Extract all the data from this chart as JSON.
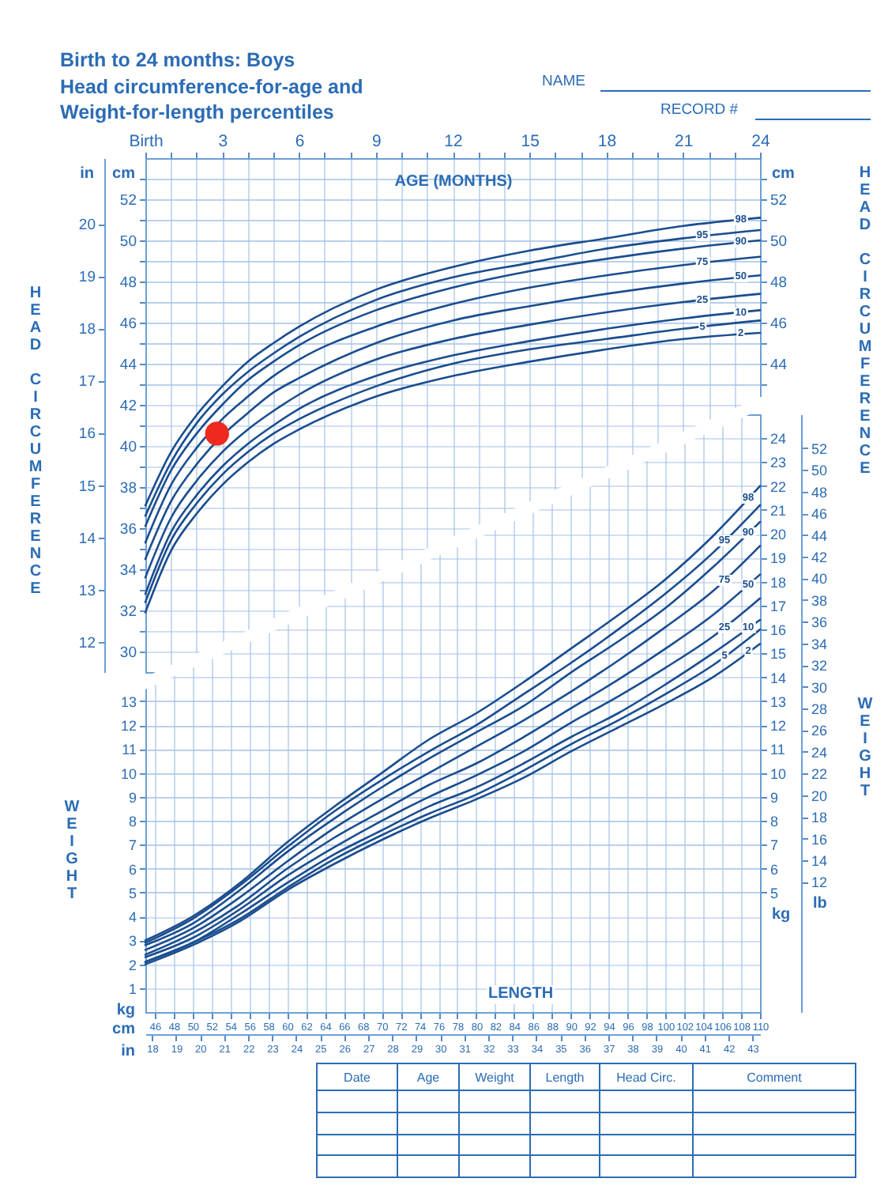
{
  "chart_data": [
    {
      "type": "line",
      "title": "Birth to 24 months: Boys",
      "subtitle": "Head circumference-for-age and Weight-for-length percentiles",
      "xlabel": "AGE (MONTHS)",
      "ylabel": "cm",
      "y2label": "cm",
      "y3label": "in",
      "x": [
        0,
        1,
        2,
        3,
        4,
        5,
        6,
        9,
        12,
        15,
        18,
        21,
        24
      ],
      "xlim": [
        0,
        24
      ],
      "xticks": [
        {
          "value": 0,
          "label": "Birth"
        },
        {
          "value": 1,
          "label": null
        },
        {
          "value": 2,
          "label": null
        },
        3,
        {
          "value": 4,
          "label": null
        },
        {
          "value": 5,
          "label": null
        },
        6,
        {
          "value": 7,
          "label": null
        },
        {
          "value": 8,
          "label": null
        },
        9,
        {
          "value": 10,
          "label": null
        },
        {
          "value": 11,
          "label": null
        },
        12,
        {
          "value": 13,
          "label": null
        },
        {
          "value": 14,
          "label": null
        },
        15,
        {
          "value": 16,
          "label": null
        },
        {
          "value": 17,
          "label": null
        },
        18,
        {
          "value": 19,
          "label": null
        },
        {
          "value": 20,
          "label": null
        },
        21,
        {
          "value": 22,
          "label": null
        },
        {
          "value": 23,
          "label": null
        },
        24
      ],
      "ylim": [
        29,
        54
      ],
      "yticks": [
        30,
        {
          "value": 31,
          "label": null
        },
        32,
        {
          "value": 33,
          "label": null
        },
        34,
        {
          "value": 35,
          "label": null
        },
        36,
        {
          "value": 37,
          "label": null
        },
        38,
        {
          "value": 39,
          "label": null
        },
        40,
        {
          "value": 41,
          "label": null
        },
        42,
        {
          "value": 43,
          "label": null
        },
        44,
        {
          "value": 45,
          "label": null
        },
        46,
        {
          "value": 47,
          "label": null
        },
        48,
        {
          "value": 49,
          "label": null
        },
        50,
        {
          "value": 51,
          "label": null
        },
        52,
        {
          "value": 53,
          "label": null
        }
      ],
      "y2lim": [
        29,
        54
      ],
      "y2ticks": [
        {
          "value": 43,
          "label": null
        },
        44,
        {
          "value": 45,
          "label": null
        },
        46,
        {
          "value": 47,
          "label": null
        },
        48,
        {
          "value": 49,
          "label": null
        },
        50,
        {
          "value": 51,
          "label": null
        },
        52,
        {
          "value": 53,
          "label": null
        }
      ],
      "y3lim": [
        11.42,
        21.26
      ],
      "y3ticks": [
        12,
        13,
        14,
        15,
        16,
        17,
        18,
        19,
        20
      ],
      "grid": true,
      "series": [
        {
          "name": "98",
          "color": "#1a4d8f",
          "values": [
            37.1,
            39.7,
            41.5,
            42.9,
            44.1,
            45.0,
            45.8,
            47.6,
            48.7,
            49.5,
            50.1,
            50.7,
            51.1
          ]
        },
        {
          "name": "95",
          "color": "#1a4d8f",
          "values": [
            36.6,
            39.2,
            41.1,
            42.5,
            43.6,
            44.5,
            45.3,
            47.1,
            48.2,
            48.9,
            49.6,
            50.1,
            50.5
          ]
        },
        {
          "name": "90",
          "color": "#1a4d8f",
          "values": [
            36.1,
            38.8,
            40.6,
            42.0,
            43.2,
            44.1,
            44.9,
            46.6,
            47.7,
            48.5,
            49.1,
            49.6,
            50.0
          ]
        },
        {
          "name": "75",
          "color": "#1a4d8f",
          "values": [
            35.3,
            38.1,
            39.9,
            41.3,
            42.4,
            43.4,
            44.2,
            45.8,
            46.9,
            47.7,
            48.3,
            48.8,
            49.2
          ]
        },
        {
          "name": "50",
          "color": "#1a4d8f",
          "values": [
            34.5,
            37.3,
            39.1,
            40.5,
            41.6,
            42.6,
            43.3,
            45.0,
            46.1,
            46.8,
            47.4,
            47.9,
            48.3
          ]
        },
        {
          "name": "25",
          "color": "#1a4d8f",
          "values": [
            33.6,
            36.5,
            38.3,
            39.7,
            40.8,
            41.7,
            42.5,
            44.2,
            45.2,
            45.9,
            46.5,
            47.0,
            47.4
          ]
        },
        {
          "name": "10",
          "color": "#1a4d8f",
          "values": [
            32.8,
            35.8,
            37.6,
            39.0,
            40.1,
            41.0,
            41.8,
            43.4,
            44.4,
            45.1,
            45.7,
            46.2,
            46.6
          ]
        },
        {
          "name": "5",
          "color": "#1a4d8f",
          "values": [
            32.4,
            35.4,
            37.2,
            38.6,
            39.7,
            40.6,
            41.3,
            42.9,
            44.0,
            44.7,
            45.2,
            45.7,
            46.1
          ]
        },
        {
          "name": "2",
          "color": "#1a4d8f",
          "values": [
            31.9,
            34.9,
            36.7,
            38.1,
            39.2,
            40.1,
            40.8,
            42.4,
            43.4,
            44.1,
            44.7,
            45.2,
            45.5
          ]
        },
        {
          "type": "scatter",
          "color": "#ee2a1f",
          "marker": "circle",
          "x": [
            2.8
          ],
          "values": [
            40.6
          ]
        }
      ],
      "annotations": [
        "NAME",
        "RECORD #",
        "HEAD CIRCUMFERENCE",
        "HEAD CIRCUMFERENCE"
      ]
    },
    {
      "type": "line",
      "xlabel": "cm",
      "x2label": "in",
      "ylabel": "kg",
      "y2label": "kg",
      "y3label": "lb",
      "x": [
        45,
        50,
        55,
        60,
        65,
        70,
        75,
        80,
        85,
        90,
        95,
        100,
        105,
        110
      ],
      "xlim": [
        45,
        110
      ],
      "xticks": [
        46,
        48,
        50,
        52,
        54,
        56,
        58,
        60,
        62,
        64,
        66,
        68,
        70,
        72,
        74,
        76,
        78,
        80,
        82,
        84,
        86,
        88,
        90,
        92,
        94,
        96,
        98,
        100,
        102,
        104,
        106,
        108,
        110
      ],
      "x2lim": [
        17.72,
        43.31
      ],
      "x2ticks": [
        18,
        19,
        20,
        21,
        22,
        23,
        24,
        25,
        26,
        27,
        28,
        29,
        30,
        31,
        32,
        33,
        34,
        35,
        36,
        37,
        38,
        39,
        40,
        41,
        42,
        43
      ],
      "ylim": [
        0,
        25
      ],
      "yticks": [
        1,
        2,
        3,
        4,
        5,
        6,
        7,
        8,
        9,
        10,
        11,
        12,
        13
      ],
      "y2lim": [
        0,
        25
      ],
      "y2ticks": [
        5,
        6,
        7,
        8,
        9,
        10,
        11,
        12,
        13,
        14,
        15,
        16,
        17,
        18,
        19,
        20,
        21,
        22,
        23,
        24
      ],
      "y3lim": [
        0,
        55.12
      ],
      "y3ticks": [
        12,
        14,
        16,
        18,
        20,
        22,
        24,
        26,
        28,
        30,
        32,
        34,
        36,
        38,
        40,
        42,
        44,
        46,
        48,
        50,
        52
      ],
      "grid": true,
      "series": [
        {
          "name": "98",
          "color": "#1a4d8f",
          "values": [
            3.0,
            4.0,
            5.4,
            7.1,
            8.6,
            10.0,
            11.4,
            12.5,
            13.8,
            15.2,
            16.6,
            18.1,
            19.9,
            22.0
          ]
        },
        {
          "name": "95",
          "color": "#1a4d8f",
          "values": [
            2.9,
            3.9,
            5.3,
            6.9,
            8.4,
            9.7,
            10.9,
            12.0,
            13.3,
            14.6,
            16.0,
            17.5,
            19.2,
            21.2
          ]
        },
        {
          "name": "90",
          "color": "#1a4d8f",
          "values": [
            2.8,
            3.7,
            5.1,
            6.7,
            8.1,
            9.4,
            10.6,
            11.7,
            12.8,
            14.2,
            15.5,
            16.9,
            18.6,
            20.5
          ]
        },
        {
          "name": "75",
          "color": "#1a4d8f",
          "values": [
            2.6,
            3.5,
            4.8,
            6.3,
            7.7,
            8.9,
            10.0,
            11.1,
            12.2,
            13.4,
            14.7,
            16.1,
            17.6,
            19.5
          ]
        },
        {
          "name": "50",
          "color": "#1a4d8f",
          "values": [
            2.4,
            3.3,
            4.5,
            6.0,
            7.3,
            8.4,
            9.5,
            10.4,
            11.5,
            12.7,
            13.9,
            15.2,
            16.6,
            18.3
          ]
        },
        {
          "name": "25",
          "color": "#1a4d8f",
          "values": [
            2.3,
            3.1,
            4.3,
            5.7,
            6.9,
            8.0,
            9.0,
            9.9,
            10.9,
            12.1,
            13.2,
            14.4,
            15.7,
            17.3
          ]
        },
        {
          "name": "10",
          "color": "#1a4d8f",
          "values": [
            2.1,
            2.9,
            4.1,
            5.4,
            6.6,
            7.6,
            8.6,
            9.4,
            10.4,
            11.5,
            12.5,
            13.7,
            15.0,
            16.4
          ]
        },
        {
          "name": "5",
          "color": "#1a4d8f",
          "values": [
            2.1,
            2.9,
            3.9,
            5.2,
            6.4,
            7.4,
            8.3,
            9.1,
            10.1,
            11.2,
            12.2,
            13.3,
            14.5,
            16.0
          ]
        },
        {
          "name": "2",
          "color": "#1a4d8f",
          "values": [
            2.0,
            2.8,
            3.8,
            5.1,
            6.2,
            7.2,
            8.1,
            8.9,
            9.8,
            10.9,
            11.9,
            12.9,
            14.0,
            15.4
          ]
        }
      ],
      "annotations": [
        "WEIGHT",
        "WEIGHT",
        "LENGTH",
        "Date",
        "Age",
        "Weight",
        "Length",
        "Head Circ.",
        "Comment"
      ]
    }
  ]
}
